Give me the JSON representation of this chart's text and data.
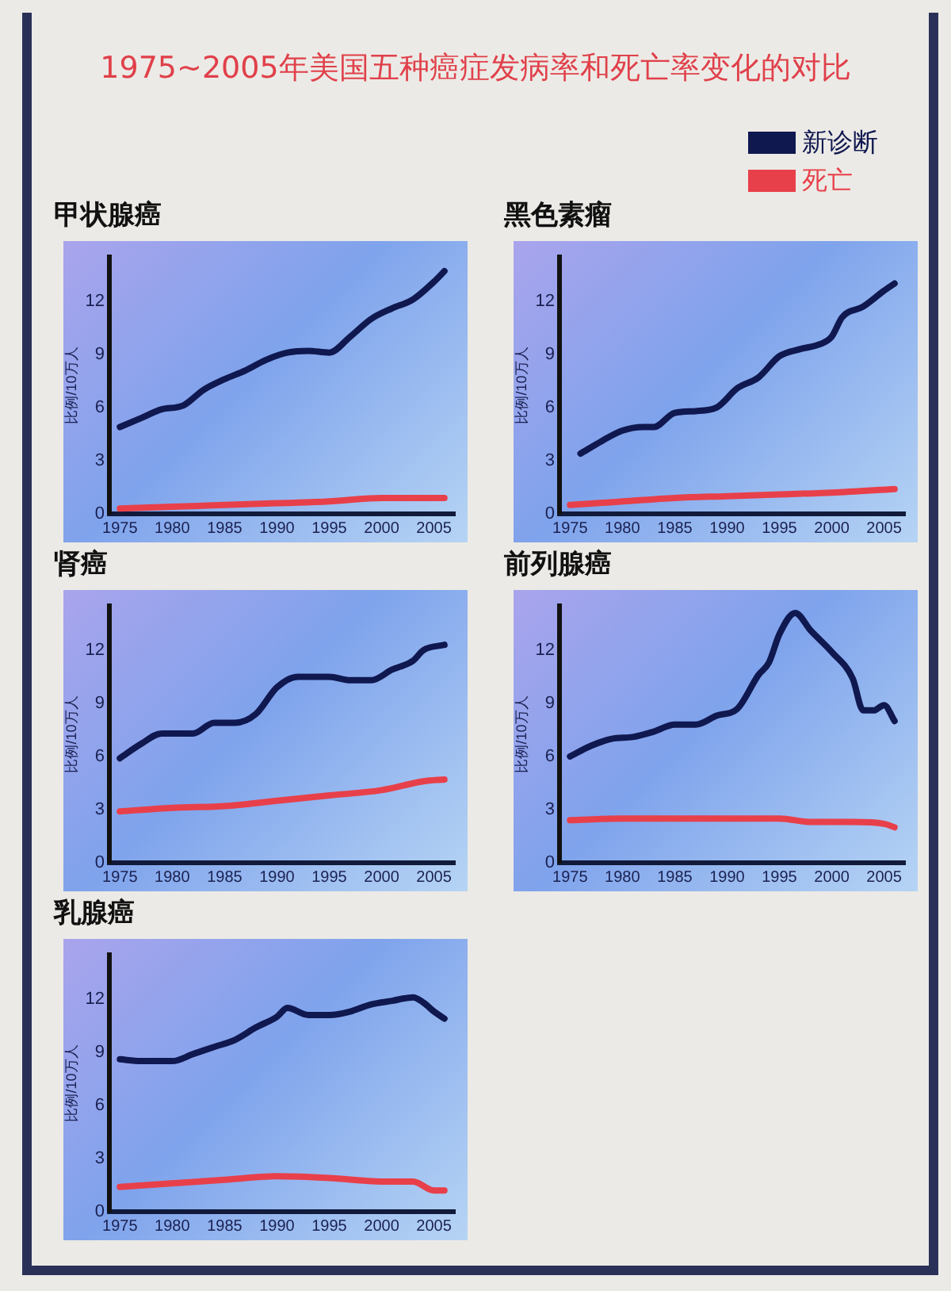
{
  "chart_data": [
    {
      "type": "other",
      "title": "1975~2005年美国五种癌症发病率和死亡率变化的对比"
    },
    {
      "type": "line",
      "title": "甲状腺癌",
      "ylabel": "比例/10万人",
      "xlim": [
        1974,
        2007
      ],
      "xticks": [
        1975,
        1980,
        1985,
        1990,
        1995,
        2000,
        2005
      ],
      "ylim": [
        0,
        14.5
      ],
      "yticks": [
        0,
        3,
        6,
        9,
        12
      ],
      "legend": "top right",
      "marker": "none",
      "grid": false,
      "series": [
        {
          "name": "新诊断",
          "color": "#101850",
          "x": [
            1975,
            1977,
            1979,
            1981,
            1983,
            1985,
            1987,
            1989,
            1991,
            1993,
            1995,
            1997,
            1999,
            2001,
            2003,
            2005,
            2006
          ],
          "values": [
            4.9,
            5.4,
            5.9,
            6.1,
            7.0,
            7.6,
            8.1,
            8.7,
            9.1,
            9.2,
            9.1,
            10.0,
            11.0,
            11.6,
            12.1,
            13.1,
            13.7
          ]
        },
        {
          "name": "死亡",
          "color": "#e8404a",
          "x": [
            1975,
            1980,
            1985,
            1990,
            1995,
            2000,
            2006
          ],
          "values": [
            0.3,
            0.4,
            0.5,
            0.6,
            0.7,
            0.9,
            0.9
          ]
        }
      ]
    },
    {
      "type": "line",
      "title": "黑色素瘤",
      "ylabel": "比例/10万人",
      "xlim": [
        1974,
        2007
      ],
      "xticks": [
        1975,
        1980,
        1985,
        1990,
        1995,
        2000,
        2005
      ],
      "ylim": [
        0,
        14.5
      ],
      "yticks": [
        0,
        3,
        6,
        9,
        12
      ],
      "marker": "none",
      "grid": false,
      "series": [
        {
          "color": "#101850",
          "x": [
            1976,
            1978,
            1980,
            1982,
            1983,
            1985,
            1987,
            1989,
            1991,
            1993,
            1995,
            1997,
            1999,
            2000,
            2001,
            2003,
            2005,
            2006
          ],
          "values": [
            3.4,
            4.1,
            4.7,
            4.9,
            4.9,
            5.7,
            5.8,
            6.0,
            7.1,
            7.7,
            8.9,
            9.3,
            9.6,
            10.0,
            11.1,
            11.7,
            12.6,
            13.0
          ]
        },
        {
          "color": "#e8404a",
          "x": [
            1975,
            1980,
            1985,
            1990,
            1995,
            2000,
            2006
          ],
          "values": [
            0.5,
            0.7,
            0.9,
            1.0,
            1.1,
            1.2,
            1.4
          ]
        }
      ]
    },
    {
      "type": "line",
      "title": "肾癌",
      "ylabel": "比例/10万人",
      "xlim": [
        1974,
        2007
      ],
      "xticks": [
        1975,
        1980,
        1985,
        1990,
        1995,
        2000,
        2005
      ],
      "ylim": [
        0,
        14.5
      ],
      "yticks": [
        0,
        3,
        6,
        9,
        12
      ],
      "marker": "none",
      "grid": false,
      "series": [
        {
          "color": "#101850",
          "x": [
            1975,
            1977,
            1979,
            1982,
            1984,
            1986,
            1988,
            1990,
            1992,
            1995,
            1997,
            1999,
            2001,
            2003,
            2004,
            2006
          ],
          "values": [
            5.9,
            6.7,
            7.3,
            7.3,
            7.9,
            7.9,
            8.4,
            9.9,
            10.5,
            10.5,
            10.3,
            10.3,
            10.9,
            11.4,
            12.0,
            12.3
          ]
        },
        {
          "color": "#e8404a",
          "x": [
            1975,
            1980,
            1985,
            1990,
            1995,
            2000,
            2004,
            2006
          ],
          "values": [
            2.9,
            3.1,
            3.2,
            3.5,
            3.8,
            4.1,
            4.6,
            4.7
          ]
        }
      ]
    },
    {
      "type": "line",
      "title": "前列腺癌",
      "ylabel": "比例/10万人",
      "xlim": [
        1974,
        2007
      ],
      "xticks": [
        1975,
        1980,
        1985,
        1990,
        1995,
        2000,
        2005
      ],
      "ylim": [
        0,
        14.5
      ],
      "yticks": [
        0,
        3,
        6,
        9,
        12
      ],
      "marker": "none",
      "grid": false,
      "series": [
        {
          "color": "#101850",
          "x": [
            1975,
            1977,
            1979,
            1981,
            1983,
            1985,
            1987,
            1989,
            1991,
            1993,
            1994,
            1995,
            1996.5,
            1998,
            2000,
            2002,
            2003,
            2004,
            2005,
            2006
          ],
          "values": [
            6.0,
            6.6,
            7.0,
            7.1,
            7.4,
            7.8,
            7.8,
            8.3,
            8.7,
            10.6,
            11.3,
            12.9,
            14.1,
            13.1,
            11.9,
            10.4,
            8.6,
            8.6,
            8.9,
            8.0
          ]
        },
        {
          "color": "#e8404a",
          "x": [
            1975,
            1980,
            1985,
            1990,
            1995,
            1998,
            2002,
            2005,
            2006
          ],
          "values": [
            2.4,
            2.5,
            2.5,
            2.5,
            2.5,
            2.3,
            2.3,
            2.2,
            2.0
          ]
        }
      ]
    },
    {
      "type": "line",
      "title": "乳腺癌",
      "ylabel": "比例/10万人",
      "xlim": [
        1974,
        2007
      ],
      "xticks": [
        1975,
        1980,
        1985,
        1990,
        1995,
        2000,
        2005
      ],
      "ylim": [
        0,
        14.5
      ],
      "yticks": [
        0,
        3,
        6,
        9,
        12
      ],
      "marker": "none",
      "grid": false,
      "series": [
        {
          "color": "#101850",
          "x": [
            1975,
            1977,
            1980,
            1982,
            1984,
            1986,
            1988,
            1990,
            1991,
            1993,
            1995,
            1997,
            1999,
            2001,
            2003,
            2004,
            2005,
            2006
          ],
          "values": [
            8.6,
            8.5,
            8.5,
            8.9,
            9.3,
            9.7,
            10.4,
            11.0,
            11.5,
            11.1,
            11.1,
            11.3,
            11.7,
            11.9,
            12.1,
            11.8,
            11.3,
            10.9
          ]
        },
        {
          "color": "#e8404a",
          "x": [
            1975,
            1980,
            1985,
            1990,
            1995,
            2000,
            2003,
            2005,
            2006
          ],
          "values": [
            1.4,
            1.6,
            1.8,
            2.0,
            1.9,
            1.7,
            1.7,
            1.2,
            1.2
          ]
        }
      ]
    }
  ]
}
